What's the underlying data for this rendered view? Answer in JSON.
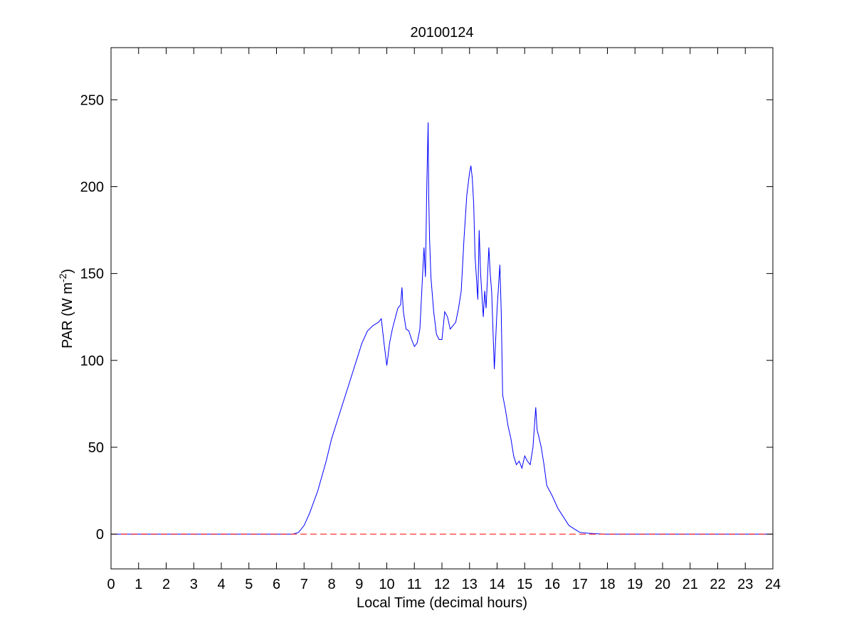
{
  "chart_data": {
    "type": "line",
    "title": "20100124",
    "xlabel": "Local Time (decimal hours)",
    "ylabel": {
      "text": "PAR (W m",
      "superscript": "-2",
      "suffix": ")"
    },
    "xlim": [
      0,
      24
    ],
    "ylim": [
      -20,
      280
    ],
    "xticks": [
      0,
      1,
      2,
      3,
      4,
      5,
      6,
      7,
      8,
      9,
      10,
      11,
      12,
      13,
      14,
      15,
      16,
      17,
      18,
      19,
      20,
      21,
      22,
      23,
      24
    ],
    "yticks": [
      0,
      50,
      100,
      150,
      200,
      250
    ],
    "grid": false,
    "series": [
      {
        "color": "#0000ff",
        "style": "solid",
        "x": [
          0,
          6.6,
          6.8,
          7.0,
          7.2,
          7.5,
          7.8,
          8.0,
          8.3,
          8.6,
          8.9,
          9.1,
          9.3,
          9.5,
          9.7,
          9.8,
          9.9,
          10.0,
          10.05,
          10.1,
          10.2,
          10.3,
          10.4,
          10.5,
          10.55,
          10.6,
          10.7,
          10.8,
          10.9,
          11.0,
          11.1,
          11.2,
          11.3,
          11.35,
          11.4,
          11.45,
          11.5,
          11.52,
          11.55,
          11.6,
          11.7,
          11.8,
          11.9,
          12.0,
          12.1,
          12.2,
          12.3,
          12.4,
          12.5,
          12.6,
          12.7,
          12.8,
          12.9,
          13.0,
          13.05,
          13.1,
          13.15,
          13.2,
          13.3,
          13.35,
          13.4,
          13.5,
          13.55,
          13.6,
          13.7,
          13.75,
          13.8,
          13.9,
          14.0,
          14.1,
          14.15,
          14.2,
          14.3,
          14.4,
          14.5,
          14.6,
          14.7,
          14.8,
          14.9,
          15.0,
          15.1,
          15.2,
          15.3,
          15.4,
          15.45,
          15.5,
          15.6,
          15.7,
          15.8,
          16.0,
          16.2,
          16.4,
          16.6,
          16.8,
          17.0,
          17.3,
          17.6,
          17.9,
          18.2,
          24
        ],
        "values": [
          0,
          0,
          1,
          5,
          12,
          25,
          42,
          55,
          70,
          85,
          100,
          110,
          117,
          120,
          122,
          124,
          110,
          97,
          103,
          110,
          118,
          124,
          130,
          132,
          142,
          128,
          118,
          117,
          112,
          108,
          110,
          118,
          150,
          165,
          148,
          200,
          237,
          195,
          170,
          148,
          128,
          115,
          112,
          112,
          128,
          125,
          118,
          120,
          122,
          130,
          140,
          170,
          195,
          208,
          212,
          205,
          190,
          160,
          135,
          175,
          150,
          125,
          140,
          130,
          165,
          150,
          140,
          95,
          130,
          155,
          128,
          80,
          72,
          62,
          55,
          45,
          40,
          42,
          38,
          45,
          42,
          40,
          50,
          73,
          60,
          57,
          50,
          40,
          28,
          22,
          15,
          10,
          5,
          3,
          1,
          0.5,
          0.2,
          0,
          0,
          0
        ]
      },
      {
        "color": "#ff0000",
        "style": "dashed",
        "x": [
          0,
          24
        ],
        "values": [
          0,
          0
        ]
      }
    ]
  }
}
